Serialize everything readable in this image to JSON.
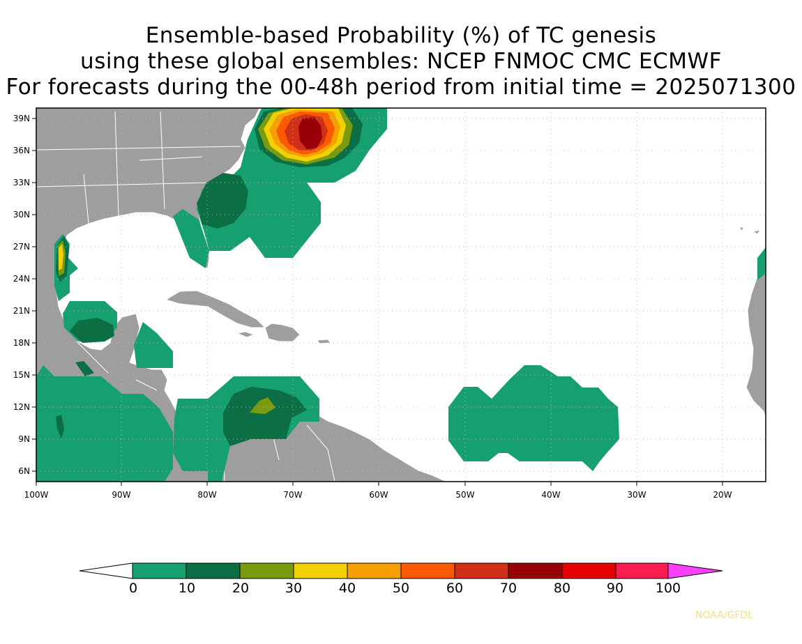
{
  "title": {
    "line1": "Ensemble-based Probability (%) of TC genesis",
    "line2": "using these global ensembles:   NCEP FNMOC CMC ECMWF",
    "line3": "For forecasts during the 00-48h period from initial time = 2025071300"
  },
  "map": {
    "lon_labels": [
      "100W",
      "90W",
      "80W",
      "70W",
      "60W",
      "50W",
      "40W",
      "30W",
      "20W"
    ],
    "lat_labels": [
      "39N",
      "36N",
      "33N",
      "30N",
      "27N",
      "24N",
      "21N",
      "18N",
      "15N",
      "12N",
      "9N",
      "6N"
    ],
    "land_color": "#9e9e9e",
    "border_color": "#ffffff",
    "gridlines": "dotted"
  },
  "colorbar": {
    "labels": [
      "0",
      "10",
      "20",
      "30",
      "40",
      "50",
      "60",
      "70",
      "80",
      "90",
      "100"
    ],
    "colors": [
      "#ffffff",
      "#16a06f",
      "#0c6e44",
      "#7a9b0e",
      "#f2d100",
      "#f5a000",
      "#fc5a00",
      "#d03018",
      "#980006",
      "#e60000",
      "#fa1e50",
      "#fa40fa"
    ]
  },
  "credit": "NOAA/GFDL"
}
